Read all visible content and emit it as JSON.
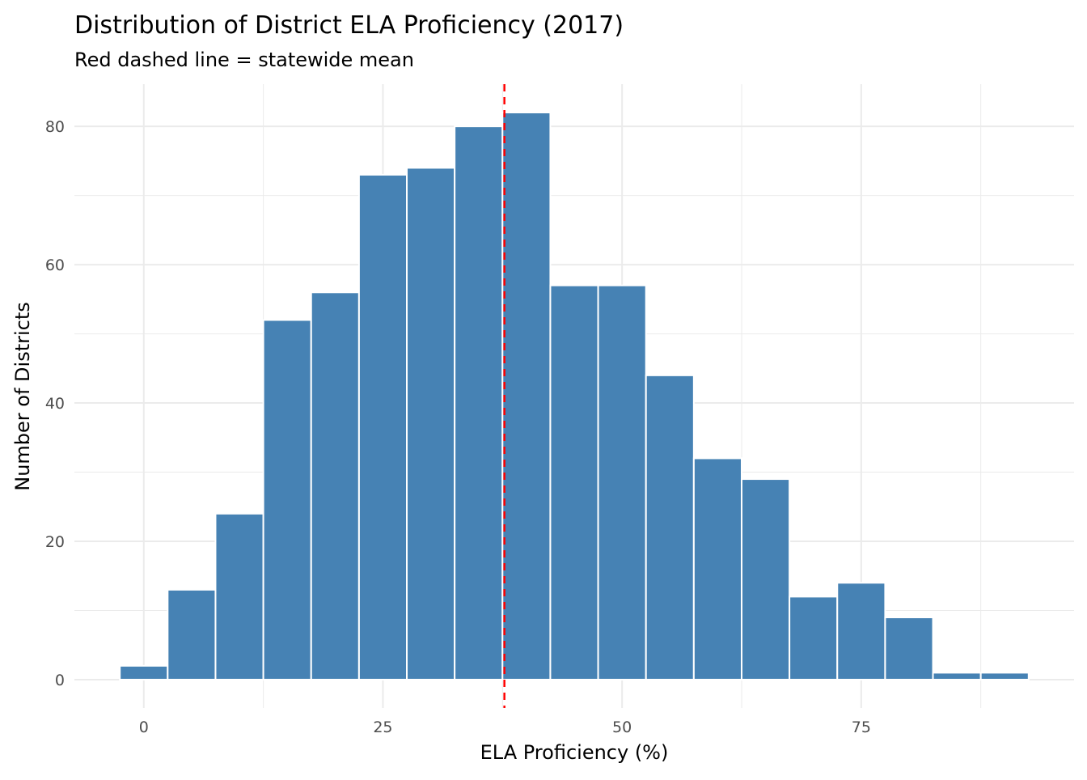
{
  "chart_data": {
    "type": "bar",
    "title": "Distribution of District ELA Proficiency (2017)",
    "subtitle": "Red dashed line = statewide mean",
    "xlabel": "ELA Proficiency (%)",
    "ylabel": "Number of Districts",
    "bin_width": 5,
    "bin_centers": [
      0,
      5,
      10,
      15,
      20,
      25,
      30,
      35,
      40,
      45,
      50,
      55,
      60,
      65,
      70,
      75,
      80,
      85,
      90
    ],
    "values": [
      2,
      13,
      24,
      52,
      56,
      73,
      74,
      80,
      82,
      57,
      57,
      44,
      32,
      29,
      12,
      14,
      9,
      1,
      1
    ],
    "xlim": [
      -7.25,
      97.25
    ],
    "ylim": [
      -4.1,
      86.1
    ],
    "x_ticks": [
      0,
      25,
      50,
      75
    ],
    "x_tick_labels": [
      "0",
      "25",
      "50",
      "75"
    ],
    "y_ticks": [
      0,
      20,
      40,
      60,
      80
    ],
    "y_tick_labels": [
      "0",
      "20",
      "40",
      "60",
      "80"
    ],
    "mean_line": 37.7,
    "grid": true,
    "colors": {
      "bar_fill": "#4682B4",
      "bar_outline": "#FFFFFF",
      "mean_line": "#FF0000",
      "grid": "#EBEBEB"
    }
  }
}
